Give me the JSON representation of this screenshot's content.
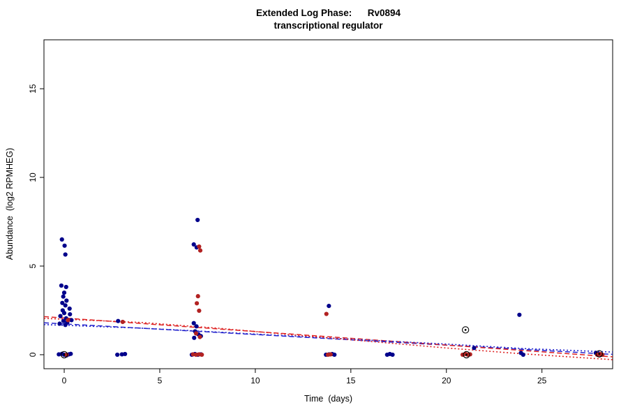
{
  "chart_data": {
    "type": "scatter",
    "title_line1": "Extended Log Phase:      Rv0894",
    "title_line2": "transcriptional regulator",
    "xlabel": "Time  (days)",
    "ylabel": "Abundance  (log2 RPMHEG)",
    "axes": {
      "xlim": [
        -1.06,
        28.7
      ],
      "ylim": [
        -0.79,
        17.76
      ],
      "xticks": [
        0,
        5,
        10,
        15,
        20,
        25
      ],
      "yticks": [
        0,
        5,
        10,
        15
      ],
      "grid": false,
      "box": true
    },
    "colors": {
      "blue_points": "#00008B",
      "red_points": "#B22222",
      "blue_line": "#2222CC",
      "red_line": "#DD2222",
      "flagged": "#000000"
    },
    "series": [
      {
        "name": "blue-sample-points",
        "color": "#00008B",
        "marker": "dot",
        "points": [
          [
            -0.12,
            6.5
          ],
          [
            0.02,
            6.15
          ],
          [
            0.06,
            5.65
          ],
          [
            -0.15,
            3.9
          ],
          [
            0.1,
            3.82
          ],
          [
            0.0,
            3.5
          ],
          [
            -0.05,
            3.28
          ],
          [
            0.12,
            3.05
          ],
          [
            -0.1,
            2.92
          ],
          [
            0.06,
            2.78
          ],
          [
            0.28,
            2.6
          ],
          [
            -0.08,
            2.5
          ],
          [
            0.0,
            2.35
          ],
          [
            0.3,
            2.28
          ],
          [
            -0.2,
            2.18
          ],
          [
            0.1,
            2.05
          ],
          [
            0.38,
            1.95
          ],
          [
            -0.04,
            1.9
          ],
          [
            0.16,
            1.82
          ],
          [
            -0.24,
            1.75
          ],
          [
            0.06,
            1.68
          ],
          [
            -0.28,
            0.02
          ],
          [
            -0.12,
            0.05
          ],
          [
            0.0,
            0.0
          ],
          [
            0.12,
            -0.04
          ],
          [
            0.24,
            0.02
          ],
          [
            0.34,
            0.05
          ],
          [
            2.82,
            1.9
          ],
          [
            2.78,
            0.0
          ],
          [
            3.02,
            0.02
          ],
          [
            3.18,
            0.04
          ],
          [
            6.98,
            7.6
          ],
          [
            6.78,
            6.22
          ],
          [
            6.93,
            6.05
          ],
          [
            6.78,
            1.78
          ],
          [
            6.92,
            1.6
          ],
          [
            6.85,
            1.32
          ],
          [
            7.02,
            1.15
          ],
          [
            6.8,
            0.95
          ],
          [
            7.15,
            1.05
          ],
          [
            6.68,
            0.0
          ],
          [
            6.84,
            0.04
          ],
          [
            7.0,
            0.0
          ],
          [
            7.16,
            0.02
          ],
          [
            13.85,
            2.75
          ],
          [
            13.7,
            0.0
          ],
          [
            13.86,
            0.02
          ],
          [
            14.02,
            0.04
          ],
          [
            14.14,
            0.0
          ],
          [
            16.9,
            0.0
          ],
          [
            17.04,
            0.04
          ],
          [
            17.18,
            0.0
          ],
          [
            21.45,
            0.38
          ],
          [
            23.82,
            2.25
          ],
          [
            23.9,
            0.1
          ],
          [
            24.02,
            0.0
          ],
          [
            27.82,
            0.1
          ],
          [
            27.96,
            0.04
          ],
          [
            28.1,
            0.0
          ]
        ]
      },
      {
        "name": "red-sample-points",
        "color": "#B22222",
        "marker": "dot",
        "points": [
          [
            0.2,
            1.95
          ],
          [
            0.12,
            0.0
          ],
          [
            3.06,
            1.85
          ],
          [
            7.06,
            6.1
          ],
          [
            7.12,
            5.88
          ],
          [
            7.0,
            3.3
          ],
          [
            6.94,
            2.9
          ],
          [
            7.06,
            2.48
          ],
          [
            6.9,
            1.2
          ],
          [
            7.1,
            1.0
          ],
          [
            6.74,
            0.02
          ],
          [
            6.9,
            0.0
          ],
          [
            7.06,
            0.02
          ],
          [
            7.2,
            0.0
          ],
          [
            13.72,
            2.3
          ],
          [
            13.8,
            0.0
          ],
          [
            13.94,
            0.02
          ],
          [
            20.85,
            0.0
          ],
          [
            21.0,
            0.04
          ],
          [
            21.12,
            0.0
          ],
          [
            21.24,
            0.02
          ],
          [
            27.9,
            0.0
          ],
          [
            28.04,
            0.04
          ],
          [
            28.16,
            0.0
          ]
        ]
      },
      {
        "name": "flagged-outlier-points",
        "color": "#000000",
        "marker": "circle-dot",
        "points": [
          [
            0.0,
            0.0
          ],
          [
            21.0,
            1.4
          ],
          [
            21.05,
            0.0
          ],
          [
            28.0,
            0.05
          ]
        ]
      }
    ],
    "lines": [
      {
        "name": "blue-dashed-fit-line",
        "color": "#2222CC",
        "dash": "7,4",
        "width": 1.5,
        "points": [
          [
            -1.06,
            1.8
          ],
          [
            28.7,
            0.02
          ]
        ]
      },
      {
        "name": "red-dashed-fit-line",
        "color": "#DD2222",
        "dash": "7,4",
        "width": 1.5,
        "points": [
          [
            -1.06,
            2.15
          ],
          [
            28.7,
            -0.12
          ]
        ]
      },
      {
        "name": "blue-dotted-fit-line",
        "color": "#2222CC",
        "dash": "2,3",
        "width": 1.6,
        "points": [
          [
            -1.06,
            1.7
          ],
          [
            4,
            1.5
          ],
          [
            8,
            1.28
          ],
          [
            12,
            1.05
          ],
          [
            16,
            0.82
          ],
          [
            20,
            0.6
          ],
          [
            24,
            0.35
          ],
          [
            28.7,
            0.15
          ]
        ]
      },
      {
        "name": "red-dotted-fit-line",
        "color": "#DD2222",
        "dash": "2,3",
        "width": 1.6,
        "points": [
          [
            -1.06,
            2.05
          ],
          [
            4,
            1.82
          ],
          [
            8,
            1.5
          ],
          [
            12,
            1.12
          ],
          [
            16,
            0.75
          ],
          [
            20,
            0.38
          ],
          [
            24,
            0.05
          ],
          [
            28.7,
            -0.28
          ]
        ]
      }
    ]
  }
}
